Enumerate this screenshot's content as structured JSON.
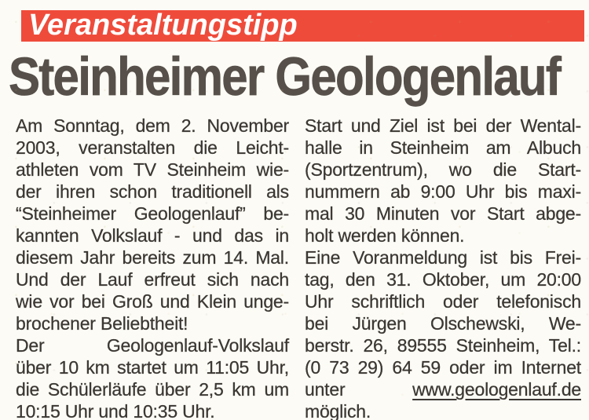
{
  "paper": {
    "background_color": "#fcfbf5"
  },
  "kicker": {
    "label": "Veranstaltungstipp",
    "background_color": "#ef4b3b",
    "text_color": "#ffffff"
  },
  "headline": {
    "text": "Steinheimer Geologenlauf",
    "color": "#57504a"
  },
  "body": {
    "text_color": "#3b3733",
    "left_lines": [
      "Am Sonntag, dem 2. November",
      "2003, veranstalten die Leicht-",
      "athleten vom TV Steinheim wie-",
      "der ihren schon traditionell als",
      "“Steinheimer Geologenlauf” be-",
      "kannten Volkslauf - und das in",
      "diesem Jahr bereits zum 14. Mal.",
      "Und der Lauf erfreut sich nach",
      "wie vor bei Groß und Klein unge-",
      "brochener Beliebtheit!",
      "Der Geologenlauf-Volkslauf",
      "über 10 km startet um 11:05 Uhr,",
      "die Schülerläufe über 2,5 km um",
      "10:15 Uhr und 10:35 Uhr."
    ],
    "right_lines": [
      "Start und Ziel ist bei der Wental-",
      "halle in Steinheim am Albuch",
      "(Sportzentrum), wo die Start-",
      "nummern ab 9:00 Uhr bis maxi-",
      "mal 30 Minuten vor Start abge-",
      "holt werden können.",
      "Eine Voranmeldung ist bis Frei-",
      "tag, den 31. Oktober, um 20:00",
      "Uhr schriftlich oder telefonisch",
      "bei Jürgen Olschewski, We-",
      "berstr. 26, 89555 Steinheim, Tel.:",
      "(0 73 29) 64 59 oder im Internet"
    ],
    "link_line": {
      "prefix": "unter",
      "url": "www.geologenlauf.de"
    },
    "closing_line": "möglich."
  }
}
